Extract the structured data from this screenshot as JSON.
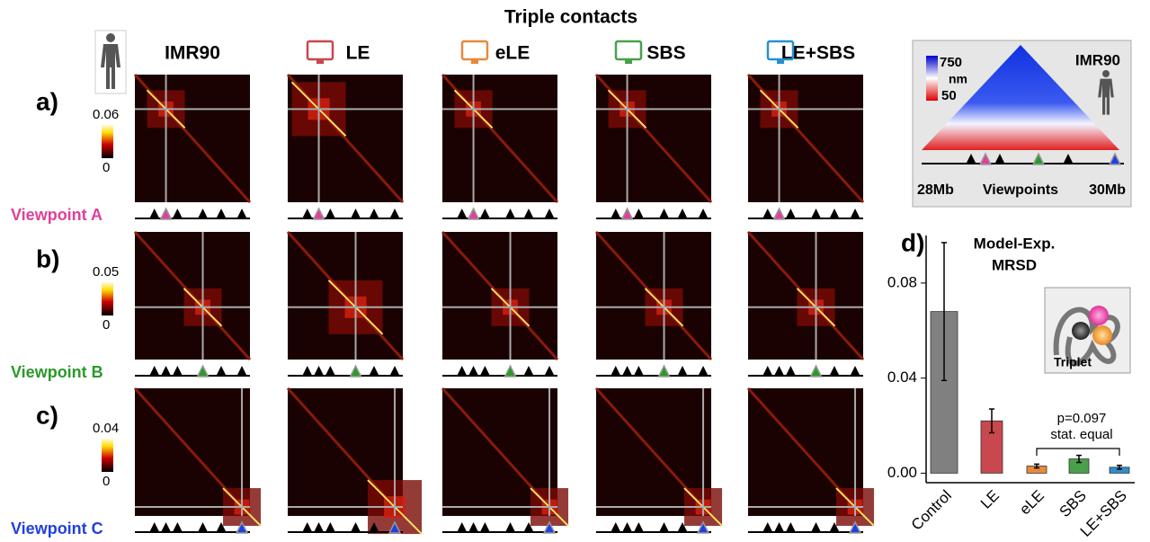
{
  "title": "Triple contacts",
  "columns": [
    "IMR90",
    "LE",
    "eLE",
    "SBS",
    "LE+SBS"
  ],
  "rows": [
    {
      "label": "a)",
      "viewpoint": "Viewpoint A",
      "scale_max": "0.06",
      "scale_min": "0"
    },
    {
      "label": "b)",
      "viewpoint": "Viewpoint B",
      "scale_max": "0.05",
      "scale_min": "0"
    },
    {
      "label": "c)",
      "viewpoint": "Viewpoint C",
      "scale_max": "0.04",
      "scale_min": "0"
    }
  ],
  "inset": {
    "title": "IMR90",
    "scale_max": "750",
    "unit": "nm",
    "scale_min": "50",
    "left": "28Mb",
    "axis_label": "Viewpoints",
    "right": "30Mb"
  },
  "chart_data": {
    "type": "bar",
    "label": "d)",
    "title": "Model-Exp.",
    "subtitle": "MRSD",
    "categories": [
      "Control",
      "LE",
      "eLE",
      "SBS",
      "LE+SBS"
    ],
    "values": [
      0.068,
      0.022,
      0.003,
      0.006,
      0.0025
    ],
    "errors": [
      0.029,
      0.005,
      0.0008,
      0.0015,
      0.0008
    ],
    "colors": [
      "#808080",
      "#c9474e",
      "#e8893a",
      "#4aa04a",
      "#2a8fd0"
    ],
    "ylim": [
      -0.004,
      0.1
    ],
    "yticks": [
      {
        "value": 0,
        "label": "0.00"
      },
      {
        "value": 0.04,
        "label": "0.04"
      },
      {
        "value": 0.08,
        "label": "0.08"
      }
    ],
    "annotations": [
      "p=0.097",
      "stat. equal"
    ],
    "inset_label": "Triplet"
  }
}
